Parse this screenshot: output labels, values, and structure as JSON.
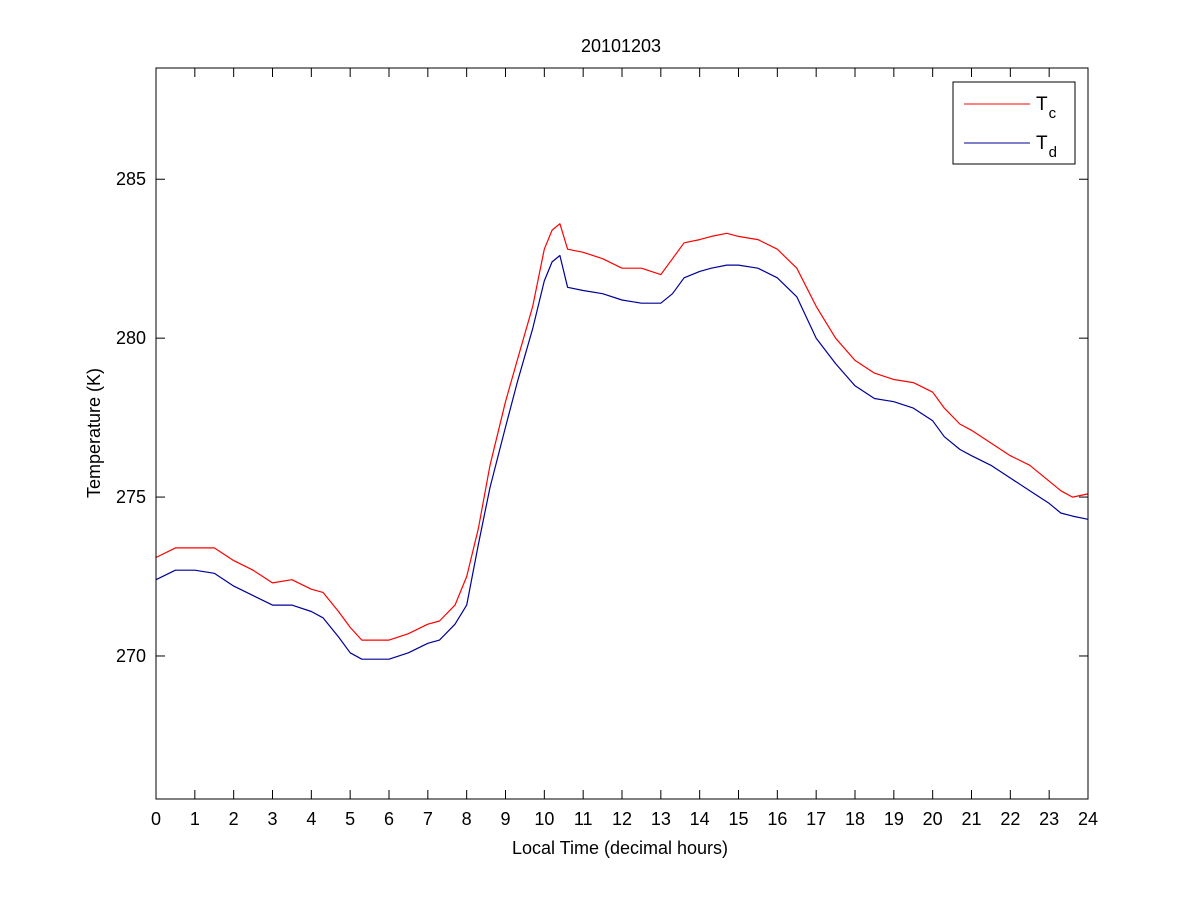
{
  "chart_data": {
    "type": "line",
    "title": "20101203",
    "xlabel": "Local Time (decimal hours)",
    "ylabel": "Temperature (K)",
    "xlim": [
      0,
      24
    ],
    "ylim": [
      265.5,
      288.5
    ],
    "xticks": [
      0,
      1,
      2,
      3,
      4,
      5,
      6,
      7,
      8,
      9,
      10,
      11,
      12,
      13,
      14,
      15,
      16,
      17,
      18,
      19,
      20,
      21,
      22,
      23,
      24
    ],
    "yticks": [
      270,
      275,
      280,
      285
    ],
    "grid": false,
    "legend_position": "top-right",
    "legend": [
      {
        "main": "T",
        "sub": "c"
      },
      {
        "main": "T",
        "sub": "d"
      }
    ],
    "series": [
      {
        "key": "Tc",
        "color": "#ff0000",
        "x": [
          0,
          0.5,
          1,
          1.5,
          2,
          2.5,
          3,
          3.5,
          4,
          4.3,
          4.7,
          5,
          5.3,
          5.7,
          6,
          6.5,
          7,
          7.3,
          7.7,
          8,
          8.3,
          8.6,
          9,
          9.3,
          9.7,
          10,
          10.2,
          10.4,
          10.6,
          11,
          11.5,
          12,
          12.5,
          13,
          13.3,
          13.6,
          14,
          14.3,
          14.7,
          15,
          15.5,
          16,
          16.5,
          17,
          17.5,
          18,
          18.5,
          19,
          19.5,
          20,
          20.3,
          20.7,
          21,
          21.5,
          22,
          22.5,
          23,
          23.3,
          23.6,
          24
        ],
        "y": [
          273.1,
          273.4,
          273.4,
          273.4,
          273.0,
          272.7,
          272.3,
          272.4,
          272.1,
          272.0,
          271.4,
          270.9,
          270.5,
          270.5,
          270.5,
          270.7,
          271.0,
          271.1,
          271.6,
          272.5,
          274.0,
          276.0,
          278.0,
          279.3,
          281.0,
          282.8,
          283.4,
          283.6,
          282.8,
          282.7,
          282.5,
          282.2,
          282.2,
          282.0,
          282.5,
          283.0,
          283.1,
          283.2,
          283.3,
          283.2,
          283.1,
          282.8,
          282.2,
          281.0,
          280.0,
          279.3,
          278.9,
          278.7,
          278.6,
          278.3,
          277.8,
          277.3,
          277.1,
          276.7,
          276.3,
          276.0,
          275.5,
          275.2,
          275.0,
          275.1
        ]
      },
      {
        "key": "Td",
        "color": "#000096",
        "x": [
          0,
          0.5,
          1,
          1.5,
          2,
          2.5,
          3,
          3.5,
          4,
          4.3,
          4.7,
          5,
          5.3,
          5.7,
          6,
          6.5,
          7,
          7.3,
          7.7,
          8,
          8.3,
          8.6,
          9,
          9.3,
          9.7,
          10,
          10.2,
          10.4,
          10.6,
          11,
          11.5,
          12,
          12.5,
          13,
          13.3,
          13.6,
          14,
          14.3,
          14.7,
          15,
          15.5,
          16,
          16.5,
          17,
          17.5,
          18,
          18.5,
          19,
          19.5,
          20,
          20.3,
          20.7,
          21,
          21.5,
          22,
          22.5,
          23,
          23.3,
          23.6,
          24
        ],
        "y": [
          272.4,
          272.7,
          272.7,
          272.6,
          272.2,
          271.9,
          271.6,
          271.6,
          271.4,
          271.2,
          270.6,
          270.1,
          269.9,
          269.9,
          269.9,
          270.1,
          270.4,
          270.5,
          271.0,
          271.6,
          273.5,
          275.3,
          277.2,
          278.6,
          280.3,
          281.8,
          282.4,
          282.6,
          281.6,
          281.5,
          281.4,
          281.2,
          281.1,
          281.1,
          281.4,
          281.9,
          282.1,
          282.2,
          282.3,
          282.3,
          282.2,
          281.9,
          281.3,
          280.0,
          279.2,
          278.5,
          278.1,
          278.0,
          277.8,
          277.4,
          276.9,
          276.5,
          276.3,
          276.0,
          275.6,
          275.2,
          274.8,
          274.5,
          274.4,
          274.3
        ]
      }
    ]
  }
}
